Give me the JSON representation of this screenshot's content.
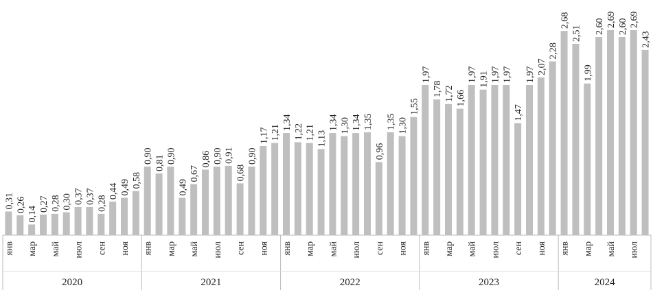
{
  "chart_data": {
    "type": "bar",
    "color": "#bfbfbf",
    "categories": [
      "янв",
      null,
      "мар",
      null,
      "май",
      null,
      "июл",
      null,
      "сен",
      null,
      "ноя",
      null,
      "янв",
      null,
      "мар",
      null,
      "май",
      null,
      "июл",
      null,
      "сен",
      null,
      "ноя",
      null,
      "янв",
      null,
      "мар",
      null,
      "май",
      null,
      "июл",
      null,
      "сен",
      null,
      "ноя",
      null,
      "янв",
      null,
      "мар",
      null,
      "май",
      null,
      "июл",
      null,
      "сен",
      null,
      "ноя",
      null,
      "янв",
      null,
      "мар",
      null,
      "май",
      null,
      "июл",
      null
    ],
    "years": [
      "2020",
      "2020",
      "2020",
      "2020",
      "2020",
      "2020",
      "2020",
      "2020",
      "2020",
      "2020",
      "2020",
      "2020",
      "2021",
      "2021",
      "2021",
      "2021",
      "2021",
      "2021",
      "2021",
      "2021",
      "2021",
      "2021",
      "2021",
      "2021",
      "2022",
      "2022",
      "2022",
      "2022",
      "2022",
      "2022",
      "2022",
      "2022",
      "2022",
      "2022",
      "2022",
      "2022",
      "2023",
      "2023",
      "2023",
      "2023",
      "2023",
      "2023",
      "2023",
      "2023",
      "2023",
      "2023",
      "2023",
      "2023",
      "2024",
      "2024",
      "2024",
      "2024",
      "2024",
      "2024",
      "2024",
      "2024"
    ],
    "values": [
      0.31,
      0.26,
      0.14,
      0.27,
      0.28,
      0.3,
      0.37,
      0.37,
      0.28,
      0.44,
      0.49,
      0.58,
      0.9,
      0.81,
      0.9,
      0.49,
      0.67,
      0.86,
      0.9,
      0.91,
      0.68,
      0.9,
      1.17,
      1.21,
      1.34,
      1.22,
      1.21,
      1.13,
      1.34,
      1.3,
      1.34,
      1.35,
      0.96,
      1.35,
      1.3,
      1.55,
      1.97,
      1.78,
      1.72,
      1.66,
      1.97,
      1.91,
      1.97,
      1.97,
      1.47,
      1.97,
      2.07,
      2.28,
      2.68,
      2.51,
      1.99,
      2.6,
      2.69,
      2.6,
      2.69,
      2.43
    ],
    "value_labels": [
      "0,31",
      "0,26",
      "0,14",
      "0,27",
      "0,28",
      "0,30",
      "0,37",
      "0,37",
      "0,28",
      "0,44",
      "0,49",
      "0,58",
      "0,90",
      "0,81",
      "0,90",
      "0,49",
      "0,67",
      "0,86",
      "0,90",
      "0,91",
      "0,68",
      "0,90",
      "1,17",
      "1,21",
      "1,34",
      "1,22",
      "1,21",
      "1,13",
      "1,34",
      "1,30",
      "1,34",
      "1,35",
      "0,96",
      "1,35",
      "1,30",
      "1,55",
      "1,97",
      "1,78",
      "1,72",
      "1,66",
      "1,97",
      "1,91",
      "1,97",
      "1,97",
      "1,47",
      "1,97",
      "2,07",
      "2,28",
      "2,68",
      "2,51",
      "1,99",
      "2,60",
      "2,69",
      "2,60",
      "2,69",
      "2,43"
    ]
  }
}
